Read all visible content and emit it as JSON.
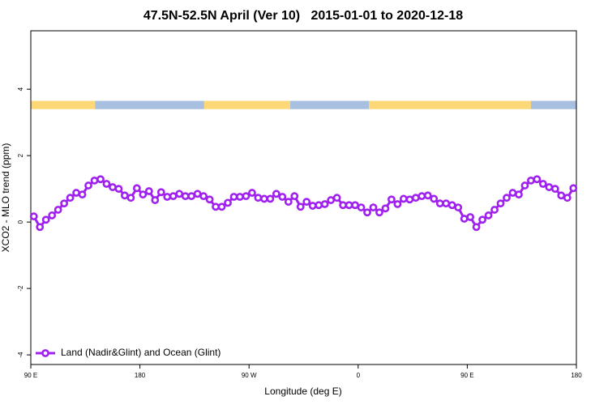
{
  "chart_data": {
    "type": "line",
    "title": "47.5N-52.5N April (Ver 10)   2015-01-01 to 2020-12-18",
    "xlabel": "Longitude (deg E)",
    "ylabel": "XCO2 - MLO trend (ppm)",
    "xlim": [
      90,
      540
    ],
    "xticks": [
      {
        "value": 90,
        "label": "90 E"
      },
      180,
      {
        "value": 270,
        "label": "90 W"
      },
      {
        "value": 360,
        "label": "0"
      },
      {
        "value": 450,
        "label": "90 E"
      },
      {
        "value": 540,
        "label": "180"
      }
    ],
    "ylim": [
      -4.29,
      5.76
    ],
    "yticks": [
      -4,
      -2,
      0,
      2,
      4
    ],
    "grid": false,
    "legend": "bottom left",
    "x": [
      92.5,
      97.5,
      102.5,
      107.5,
      112.5,
      117.5,
      122.5,
      127.5,
      132.5,
      137.5,
      142.5,
      147.5,
      152.5,
      157.5,
      162.5,
      167.5,
      172.5,
      177.5,
      182.5,
      187.5,
      192.5,
      197.5,
      202.5,
      207.5,
      212.5,
      217.5,
      222.5,
      227.5,
      232.5,
      237.5,
      242.5,
      247.5,
      252.5,
      257.5,
      262.5,
      267.5,
      272.5,
      277.5,
      282.5,
      287.5,
      292.5,
      297.5,
      302.5,
      307.5,
      312.5,
      317.5,
      322.5,
      327.5,
      332.5,
      337.5,
      342.5,
      347.5,
      352.5,
      357.5,
      362.5,
      367.5,
      372.5,
      377.5,
      382.5,
      387.5,
      392.5,
      397.5,
      402.5,
      407.5,
      412.5,
      417.5,
      422.5,
      427.5,
      432.5,
      437.5,
      442.5,
      447.5,
      452.5,
      457.5,
      462.5,
      467.5,
      472.5,
      477.5,
      482.5,
      487.5,
      492.5,
      497.5,
      502.5,
      507.5,
      512.5,
      517.5,
      522.5,
      527.5,
      532.5,
      537.5
    ],
    "series": [
      {
        "name": "Land (Nadir&Glint) and Ocean (Glint)",
        "color": "#a020f0",
        "values": [
          0.17,
          -0.15,
          0.07,
          0.2,
          0.37,
          0.56,
          0.73,
          0.88,
          0.83,
          1.1,
          1.25,
          1.29,
          1.15,
          1.05,
          1.0,
          0.8,
          0.73,
          1.02,
          0.83,
          0.93,
          0.66,
          0.9,
          0.76,
          0.78,
          0.85,
          0.78,
          0.78,
          0.85,
          0.78,
          0.68,
          0.46,
          0.46,
          0.58,
          0.76,
          0.76,
          0.78,
          0.88,
          0.73,
          0.7,
          0.7,
          0.85,
          0.76,
          0.61,
          0.78,
          0.46,
          0.61,
          0.49,
          0.51,
          0.54,
          0.66,
          0.73,
          0.51,
          0.51,
          0.51,
          0.44,
          0.29,
          0.44,
          0.29,
          0.41,
          0.68,
          0.54,
          0.7,
          0.68,
          0.73,
          0.78,
          0.8,
          0.7,
          0.56,
          0.56,
          0.51,
          0.44,
          0.1,
          0.15,
          -0.15,
          0.07,
          0.2,
          0.37,
          0.56,
          0.73,
          0.88,
          0.83,
          1.1,
          1.25,
          1.29,
          1.15,
          1.05,
          1.0,
          0.8,
          0.73,
          1.02
        ]
      }
    ],
    "surface_band": {
      "ylim": [
        3.4,
        3.65
      ],
      "segments": [
        {
          "x": [
            90,
            143
          ],
          "color": "#fdd879"
        },
        {
          "x": [
            143,
            233
          ],
          "color": "#a8bfe0"
        },
        {
          "x": [
            233,
            304
          ],
          "color": "#fdd879"
        },
        {
          "x": [
            304,
            369
          ],
          "color": "#a8bfe0"
        },
        {
          "x": [
            369,
            502.5
          ],
          "color": "#fdd879"
        },
        {
          "x": [
            502.5,
            540
          ],
          "color": "#a8bfe0"
        }
      ]
    }
  }
}
